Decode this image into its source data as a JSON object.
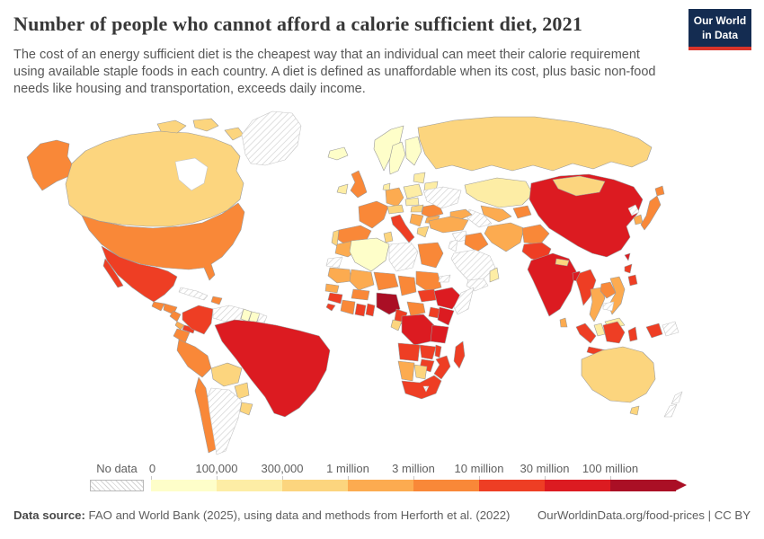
{
  "header": {
    "title": "Number of people who cannot afford a calorie sufficient diet, 2021",
    "subtitle": "The cost of an energy sufficient diet is the cheapest way that an individual can meet their calorie requirement using available staple foods in each country. A diet is defined as unaffordable when its cost, plus basic non-food needs like housing and transportation, exceeds daily income.",
    "logo": {
      "line1": "Our World",
      "line2": "in Data",
      "bg_color": "#142c51",
      "accent_color": "#d9342a"
    }
  },
  "chart_data": {
    "type": "choropleth_map",
    "title": "Number of people who cannot afford a calorie sufficient diet",
    "year": "2021",
    "unit": "people",
    "legend": {
      "no_data_label": "No data",
      "boundary_labels": [
        "0",
        "100,000",
        "300,000",
        "1 million",
        "3 million",
        "10 million",
        "30 million",
        "100 million"
      ],
      "bin_ranges": [
        "0-100,000",
        "100,000-300,000",
        "300,000-1 million",
        "1-3 million",
        "3-10 million",
        "10-30 million",
        "30-100 million",
        "100 million+"
      ],
      "bin_colors": [
        "#fefec9",
        "#fdeda5",
        "#fcd57e",
        "#fcab50",
        "#f98838",
        "#ee3e24",
        "#dc1b21",
        "#aa0f25"
      ],
      "no_data_style": "hatched"
    },
    "countries": {
      "Canada": 2,
      "United States": 4,
      "Greenland": null,
      "Mexico": 5,
      "Guatemala": 4,
      "Honduras": 4,
      "Nicaragua": 4,
      "Costa Rica": 3,
      "Panama": 5,
      "Cuba": null,
      "Dominican Republic": 4,
      "Colombia": 5,
      "Venezuela": null,
      "Guyana": 0,
      "Suriname": 0,
      "French Guiana": null,
      "Ecuador": 4,
      "Peru": 4,
      "Brazil": 6,
      "Bolivia": 2,
      "Paraguay": 2,
      "Chile": 4,
      "Argentina": null,
      "Uruguay": 2,
      "Iceland": 0,
      "Ireland": 1,
      "United Kingdom": 4,
      "Norway": 0,
      "Sweden": 0,
      "Finland": 0,
      "Denmark": 1,
      "Latvia": 1,
      "Belarus": 1,
      "Poland": 1,
      "Germany": 3,
      "France": 4,
      "Spain": 4,
      "Portugal": 2,
      "Italy": 5,
      "Austria": 2,
      "Czechia": 1,
      "Hungary": 2,
      "Romania": 4,
      "Serbia": 3,
      "Bulgaria": 3,
      "Greece": 2,
      "Ukraine": null,
      "Russia": 2,
      "Kazakhstan": 1,
      "Uzbekistan": 3,
      "Turkmenistan": null,
      "Kyrgyzstan": 4,
      "Azerbaijan": 3,
      "Turkey": 3,
      "Syria": null,
      "Iraq": 4,
      "Jordan": null,
      "Saudi Arabia": null,
      "Yemen": null,
      "Oman": 1,
      "Iran": 3,
      "Afghanistan": 4,
      "Pakistan": 5,
      "India": 6,
      "Nepal": 2,
      "Bangladesh": 6,
      "Sri Lanka": 3,
      "Myanmar": 5,
      "Thailand": 3,
      "Laos": 4,
      "Vietnam": 3,
      "Cambodia": null,
      "Malaysia": 1,
      "China": 6,
      "Mongolia": 2,
      "North Korea": null,
      "South Korea": 3,
      "Japan": 4,
      "Taiwan": 6,
      "Philippines": 5,
      "Indonesia": 5,
      "Papua New Guinea": null,
      "Australia": 2,
      "New Zealand": null,
      "Morocco": 3,
      "Western Sahara": null,
      "Algeria": 0,
      "Tunisia": 2,
      "Libya": null,
      "Egypt": 4,
      "Mauritania": 3,
      "Mali": 3,
      "Niger": 4,
      "Chad": 4,
      "Sudan": 4,
      "South Sudan": 5,
      "Eritrea": null,
      "Senegal": 3,
      "Guinea": 5,
      "Sierra Leone": 5,
      "Ivory Coast": 4,
      "Ghana": 5,
      "Benin": 5,
      "Burkina Faso": 4,
      "Nigeria": 7,
      "Cameroon": 5,
      "Central African Republic": 4,
      "Ethiopia": 6,
      "Somalia": null,
      "Kenya": 6,
      "Uganda": 5,
      "Democratic Republic of Congo": 6,
      "Gabon": 2,
      "Tanzania": 6,
      "Angola": 5,
      "Zambia": 5,
      "Malawi": 5,
      "Mozambique": 5,
      "Zimbabwe": 5,
      "Namibia": 3,
      "Botswana": 2,
      "South Africa": 5,
      "Lesotho": null,
      "Madagascar": 5
    }
  },
  "footer": {
    "source_label": "Data source:",
    "source_text": " FAO and World Bank (2025), using data and methods from Herforth et al. (2022)",
    "right_text": "OurWorldinData.org/food-prices | CC BY"
  }
}
